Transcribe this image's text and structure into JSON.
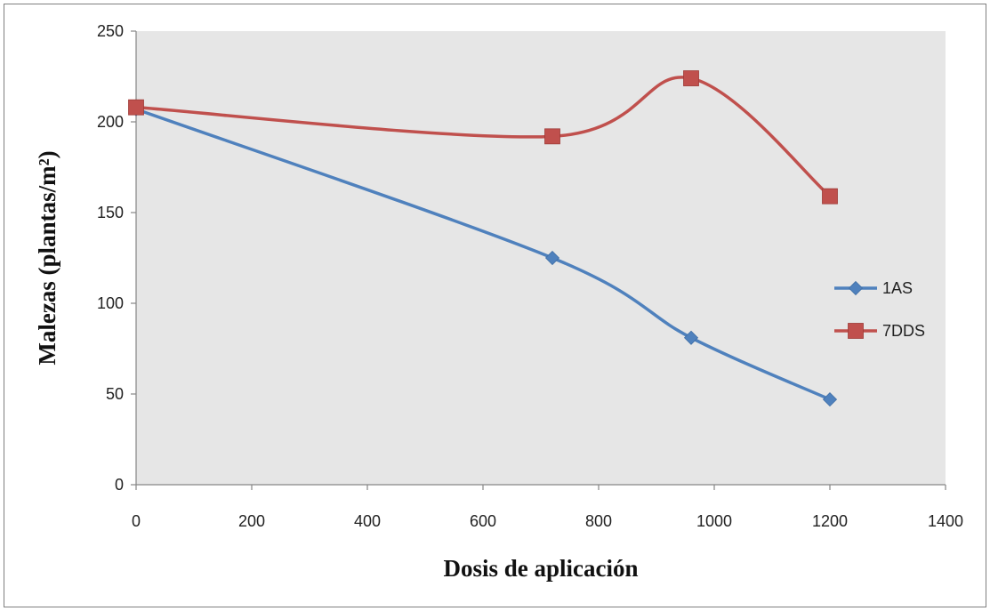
{
  "chart_data": {
    "type": "line",
    "title": "",
    "xlabel": "Dosis de aplicación",
    "ylabel": "Malezas (plantas/m²)",
    "xlim": [
      0,
      1400
    ],
    "ylim": [
      0,
      250
    ],
    "xticks": [
      0,
      200,
      400,
      600,
      800,
      1000,
      1200,
      1400
    ],
    "yticks": [
      0,
      50,
      100,
      150,
      200,
      250
    ],
    "grid": false,
    "smooth": true,
    "legend_position": "right",
    "plot_background": "#e6e6e6",
    "series": [
      {
        "name": "1AS",
        "color": "#4f81bd",
        "marker": "diamond",
        "x": [
          0,
          720,
          960,
          1200
        ],
        "y": [
          207,
          125,
          81,
          47
        ]
      },
      {
        "name": "7DDS",
        "color": "#c0504d",
        "marker": "square",
        "x": [
          0,
          720,
          960,
          1200
        ],
        "y": [
          208,
          192,
          224,
          159
        ]
      }
    ]
  }
}
